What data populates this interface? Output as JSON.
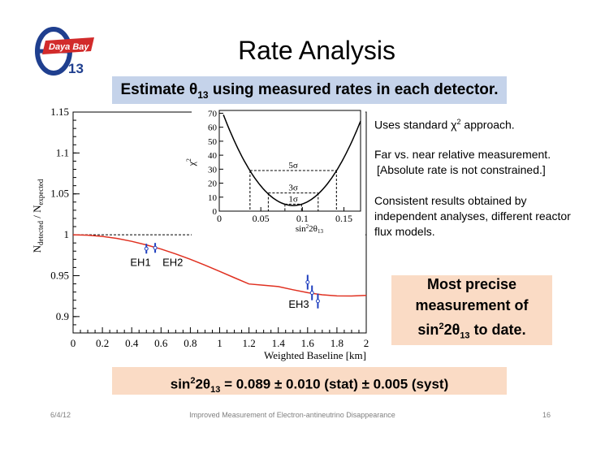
{
  "header": {
    "title": "Rate Analysis",
    "logo": {
      "theta": "θ",
      "text": "Daya Bay",
      "sub": "13",
      "colors": {
        "blue": "#1f3f8f",
        "red": "#d22b2b"
      }
    }
  },
  "estimate_box": {
    "pre": "Estimate θ",
    "sub": "13",
    "post": " using measured rates in each detector.",
    "color": "#c5d3ea"
  },
  "notes": {
    "n1_pre": "Uses standard χ",
    "n1_sup": "2",
    "n1_post": " approach.",
    "n2_line1": "Far vs. near relative measurement.",
    "n2_line2": "[Absolute rate is not constrained.]",
    "n3": "Consistent results obtained by independent analyses, different reactor flux models."
  },
  "precise_box": {
    "line1": "Most precise",
    "line2": "measurement of",
    "line3_a": "sin",
    "line3_sup": "2",
    "line3_b": "2θ",
    "line3_sub": "13",
    "line3_c": " to date.",
    "color": "#fadbc5"
  },
  "result_box": {
    "a": "sin",
    "sup": "2",
    "b": "2θ",
    "sub": "13",
    "c": " = 0.089 ± 0.010 (stat) ± 0.005 (syst)",
    "color": "#fadbc5"
  },
  "footer": {
    "date": "6/4/12",
    "text": "Improved Measurement of Electron-antineutrino Disappearance",
    "page": "16"
  },
  "chart_data": [
    {
      "type": "line",
      "xlabel": "Weighted Baseline [km]",
      "ylabel": "N_detected / N_expected",
      "ylabel_parts": {
        "n1": "N",
        "s1": "detected",
        "slash": " / N",
        "s2": "expected"
      },
      "xlim": [
        0,
        2
      ],
      "ylim": [
        0.88,
        1.15
      ],
      "x_ticks": [
        0,
        0.2,
        0.4,
        0.6,
        0.8,
        1,
        1.2,
        1.4,
        1.6,
        1.8,
        2
      ],
      "x_tick_labels": [
        "0",
        "0.2",
        "0.4",
        "0.6",
        "0.8",
        "1",
        "1.2",
        "1.4",
        "1.6",
        "1.8",
        "2"
      ],
      "y_ticks": [
        0.9,
        0.95,
        1.0,
        1.05,
        1.1,
        1.15
      ],
      "y_tick_labels": [
        "0.9",
        "0.95",
        "1",
        "1.05",
        "1.1",
        "1.15"
      ],
      "reference_line": 1.0,
      "curve_color": "#e03020",
      "points_color": "#1f3fbf",
      "curve": {
        "x": [
          0,
          0.1,
          0.2,
          0.3,
          0.4,
          0.5,
          0.6,
          0.7,
          0.8,
          0.9,
          1.0,
          1.1,
          1.2,
          1.3,
          1.4,
          1.5,
          1.6,
          1.7,
          1.8,
          1.9,
          2.0
        ],
        "y": [
          1.0,
          0.9995,
          0.998,
          0.9955,
          0.992,
          0.9876,
          0.9825,
          0.9766,
          0.97,
          0.9628,
          0.9552,
          0.9475,
          0.9399,
          0.9384,
          0.9367,
          0.9328,
          0.9292,
          0.9267,
          0.9253,
          0.9252,
          0.9259
        ]
      },
      "points": [
        {
          "x": 0.5,
          "y": 0.983,
          "err": 0.006
        },
        {
          "x": 0.56,
          "y": 0.984,
          "err": 0.006
        },
        {
          "x": 1.6,
          "y": 0.942,
          "err": 0.009
        },
        {
          "x": 1.63,
          "y": 0.929,
          "err": 0.009
        },
        {
          "x": 1.67,
          "y": 0.919,
          "err": 0.009
        }
      ],
      "site_labels": [
        {
          "text": "EH1",
          "x": 0.39,
          "y": 0.962
        },
        {
          "text": "EH2",
          "x": 0.61,
          "y": 0.962
        },
        {
          "text": "EH3",
          "x": 1.47,
          "y": 0.911
        }
      ]
    },
    {
      "type": "line",
      "xlabel_parts": {
        "a": "sin",
        "sup": "2",
        "b": "2θ",
        "sub": "13"
      },
      "ylabel_parts": {
        "a": "χ",
        "sup": "2"
      },
      "xlim": [
        0,
        0.17
      ],
      "ylim": [
        0,
        72
      ],
      "x_ticks": [
        0,
        0.05,
        0.1,
        0.15
      ],
      "x_tick_labels": [
        "0",
        "0.05",
        "0.1",
        "0.15"
      ],
      "y_ticks": [
        0,
        10,
        20,
        30,
        40,
        50,
        60,
        70
      ],
      "y_tick_labels": [
        "0",
        "10",
        "20",
        "30",
        "40",
        "50",
        "60",
        "70"
      ],
      "minimum": 0.089,
      "curve_scale": 9200,
      "curve_offset": 4,
      "sigma_levels": [
        {
          "label": "1σ",
          "y": 5,
          "x_low": 0.079,
          "x_high": 0.099
        },
        {
          "label": "3σ",
          "y": 13,
          "x_low": 0.059,
          "x_high": 0.119
        },
        {
          "label": "5σ",
          "y": 29,
          "x_low": 0.037,
          "x_high": 0.141
        }
      ]
    }
  ]
}
